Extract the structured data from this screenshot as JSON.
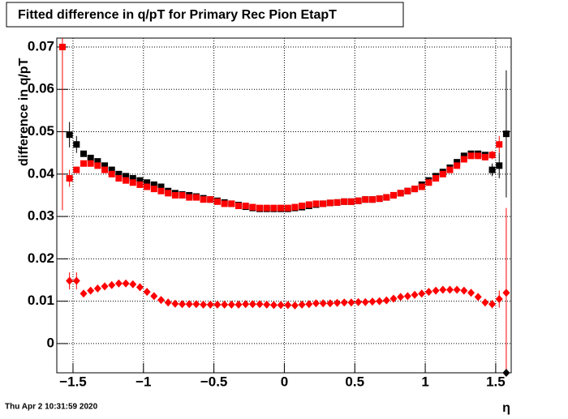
{
  "chart_data": {
    "type": "scatter",
    "title": "Fitted difference in q/pT  for Primary Rec Pion EtapT",
    "y_label": "difference in q/pT",
    "x_label": "η",
    "footer": "Thu Apr  2 10:31:59 2020",
    "grid": true,
    "xlim": [
      -1.615,
      1.61
    ],
    "ylim": [
      -0.0069,
      0.0721
    ],
    "xticks": [
      {
        "value": -1.5,
        "label": "−1.5"
      },
      {
        "value": -1,
        "label": "−1"
      },
      {
        "value": -0.5,
        "label": "−0.5"
      },
      0,
      0.5,
      1,
      1.5
    ],
    "yticks": [
      0,
      0.01,
      0.02,
      0.03,
      0.04,
      0.05,
      0.06,
      0.07
    ],
    "x": [
      -1.575,
      -1.525,
      -1.475,
      -1.425,
      -1.375,
      -1.325,
      -1.275,
      -1.225,
      -1.175,
      -1.125,
      -1.075,
      -1.025,
      -0.975,
      -0.925,
      -0.875,
      -0.825,
      -0.775,
      -0.725,
      -0.675,
      -0.625,
      -0.575,
      -0.525,
      -0.475,
      -0.425,
      -0.375,
      -0.325,
      -0.275,
      -0.225,
      -0.175,
      -0.125,
      -0.075,
      -0.025,
      0.025,
      0.075,
      0.125,
      0.175,
      0.225,
      0.275,
      0.325,
      0.375,
      0.425,
      0.475,
      0.525,
      0.575,
      0.625,
      0.675,
      0.725,
      0.775,
      0.825,
      0.875,
      0.925,
      0.975,
      1.025,
      1.075,
      1.125,
      1.175,
      1.225,
      1.275,
      1.325,
      1.375,
      1.425,
      1.475,
      1.525,
      1.575
    ],
    "series": [
      {
        "color": "#000000",
        "marker": "square",
        "values": [
          null,
          0.0493,
          0.047,
          0.0448,
          0.0438,
          0.043,
          0.042,
          0.041,
          0.04,
          0.0395,
          0.039,
          0.0385,
          0.038,
          0.0375,
          0.037,
          0.036,
          0.0355,
          0.0352,
          0.035,
          0.0347,
          0.0343,
          0.034,
          0.0337,
          0.0333,
          0.033,
          0.0327,
          0.0323,
          0.032,
          0.0318,
          0.0318,
          0.0318,
          0.0318,
          0.0318,
          0.032,
          0.0322,
          0.0325,
          0.0328,
          0.033,
          0.0332,
          0.0333,
          0.0335,
          0.0335,
          0.0337,
          0.034,
          0.034,
          0.0342,
          0.0345,
          0.035,
          0.0355,
          0.036,
          0.0365,
          0.0375,
          0.0385,
          0.0395,
          0.0405,
          0.0415,
          0.0428,
          0.0443,
          0.0448,
          0.0448,
          0.0445,
          0.041,
          0.042,
          0.0495
        ],
        "errors": [
          null,
          0.003,
          0.002,
          0,
          0,
          0,
          0,
          0,
          0,
          0,
          0,
          0,
          0,
          0,
          0,
          0,
          0,
          0,
          0,
          0,
          0,
          0,
          0,
          0,
          0,
          0,
          0,
          0,
          0,
          0,
          0,
          0,
          0,
          0,
          0,
          0,
          0,
          0,
          0,
          0,
          0,
          0,
          0,
          0,
          0,
          0,
          0,
          0,
          0,
          0,
          0,
          0,
          0,
          0,
          0,
          0,
          0,
          0,
          0,
          0,
          0,
          0.0015,
          0.003,
          0.015
        ]
      },
      {
        "color": "#ff0000",
        "marker": "square",
        "values": [
          0.07,
          0.039,
          0.041,
          0.0425,
          0.0425,
          0.042,
          0.041,
          0.04,
          0.039,
          0.0385,
          0.038,
          0.0375,
          0.037,
          0.0365,
          0.036,
          0.0355,
          0.035,
          0.035,
          0.0345,
          0.0345,
          0.034,
          0.034,
          0.0335,
          0.033,
          0.033,
          0.0325,
          0.0325,
          0.0322,
          0.032,
          0.032,
          0.032,
          0.032,
          0.032,
          0.0322,
          0.0325,
          0.0328,
          0.033,
          0.033,
          0.0332,
          0.0333,
          0.0335,
          0.0335,
          0.0337,
          0.034,
          0.034,
          0.0342,
          0.0345,
          0.035,
          0.0355,
          0.036,
          0.0365,
          0.037,
          0.038,
          0.039,
          0.04,
          0.041,
          0.042,
          0.0435,
          0.0443,
          0.0443,
          0.044,
          0.0445,
          0.047,
          null
        ],
        "errors": [
          0.0385,
          0.002,
          0,
          0,
          0,
          0,
          0,
          0,
          0,
          0,
          0,
          0,
          0,
          0,
          0,
          0,
          0,
          0,
          0,
          0,
          0,
          0,
          0,
          0,
          0,
          0,
          0,
          0,
          0,
          0,
          0,
          0,
          0,
          0,
          0,
          0,
          0,
          0,
          0,
          0,
          0,
          0,
          0,
          0,
          0,
          0,
          0,
          0,
          0,
          0,
          0,
          0,
          0,
          0,
          0,
          0,
          0,
          0,
          0,
          0,
          0,
          0.001,
          0.002,
          null
        ]
      },
      {
        "color": "#ff0000",
        "marker": "diamond",
        "values": [
          null,
          0.0148,
          0.0148,
          0.0118,
          0.0125,
          0.013,
          0.0135,
          0.0138,
          0.0142,
          0.0142,
          0.014,
          0.0133,
          0.0122,
          0.0112,
          0.0103,
          0.0097,
          0.0094,
          0.0093,
          0.0093,
          0.0093,
          0.0092,
          0.0092,
          0.0092,
          0.0092,
          0.0092,
          0.0092,
          0.0093,
          0.0093,
          0.0093,
          0.0092,
          0.0091,
          0.0091,
          0.0091,
          0.009,
          0.0092,
          0.0093,
          0.0095,
          0.0095,
          0.0095,
          0.0096,
          0.0097,
          0.0097,
          0.0098,
          0.0098,
          0.0099,
          0.01,
          0.0102,
          0.0106,
          0.011,
          0.0112,
          0.0115,
          0.0118,
          0.0122,
          0.0125,
          0.0127,
          0.0127,
          0.0127,
          0.0125,
          0.012,
          0.011,
          0.0097,
          0.0093,
          0.0105,
          0.012
        ],
        "errors": [
          null,
          0.002,
          0.002,
          0,
          0,
          0,
          0,
          0,
          0,
          0,
          0,
          0,
          0,
          0,
          0,
          0,
          0,
          0,
          0,
          0,
          0,
          0,
          0,
          0,
          0,
          0,
          0,
          0,
          0,
          0,
          0,
          0,
          0,
          0,
          0,
          0,
          0,
          0,
          0,
          0,
          0,
          0,
          0,
          0,
          0,
          0,
          0,
          0,
          0,
          0,
          0,
          0,
          0,
          0,
          0,
          0,
          0,
          0,
          0,
          0,
          0,
          0.001,
          0.002,
          0.02
        ]
      },
      {
        "color": "#000000",
        "marker": "diamond",
        "values": [
          null,
          null,
          null,
          null,
          null,
          null,
          null,
          null,
          null,
          null,
          null,
          null,
          null,
          null,
          null,
          null,
          null,
          null,
          null,
          null,
          null,
          null,
          null,
          null,
          null,
          null,
          null,
          null,
          null,
          null,
          null,
          null,
          null,
          null,
          null,
          null,
          null,
          null,
          null,
          null,
          null,
          null,
          null,
          null,
          null,
          null,
          null,
          null,
          null,
          null,
          null,
          null,
          null,
          null,
          null,
          null,
          null,
          null,
          null,
          null,
          null,
          null,
          null,
          -0.0069
        ]
      }
    ]
  }
}
